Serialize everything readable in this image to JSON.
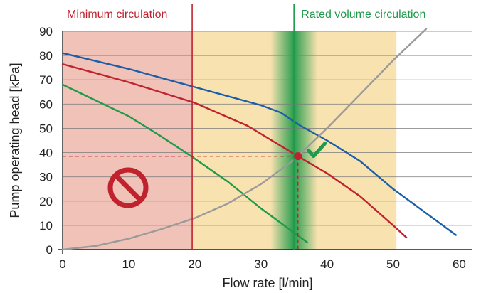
{
  "chart_data": {
    "type": "line",
    "xlabel": "Flow rate [l/min]",
    "ylabel": "Pump operating head [kPa]",
    "xlim": [
      0,
      62
    ],
    "ylim": [
      0,
      90
    ],
    "x_ticks": [
      0,
      10,
      20,
      30,
      40,
      50,
      60
    ],
    "y_ticks": [
      0,
      10,
      20,
      30,
      40,
      50,
      60,
      70,
      80,
      90
    ],
    "grid": "horizontal",
    "zones": {
      "minimum": {
        "label": "Minimum circulation",
        "x_start": 0,
        "x_end": 19.6,
        "color": "#f0c2b8"
      },
      "operating": {
        "x_start": 19.6,
        "x_end": 50.5,
        "color": "#f8e2b0"
      },
      "rated": {
        "label": "Rated volume circulation",
        "x": 35,
        "color": "#1e9a4a"
      }
    },
    "series": [
      {
        "color": "#1b5ea8",
        "points": [
          [
            0,
            81
          ],
          [
            10,
            74.5
          ],
          [
            20,
            67
          ],
          [
            30,
            59.5
          ],
          [
            33,
            56.5
          ],
          [
            36,
            51
          ],
          [
            40,
            45
          ],
          [
            45,
            36.5
          ],
          [
            50,
            25
          ],
          [
            55,
            15
          ],
          [
            59.5,
            6
          ]
        ]
      },
      {
        "color": "#c0232e",
        "points": [
          [
            0,
            76.5
          ],
          [
            10,
            69
          ],
          [
            20,
            60.5
          ],
          [
            28,
            51
          ],
          [
            35.6,
            38.5
          ],
          [
            40,
            31.5
          ],
          [
            45,
            22
          ],
          [
            50,
            10
          ],
          [
            52,
            5
          ]
        ]
      },
      {
        "color": "#1e9a4a",
        "points": [
          [
            0,
            68
          ],
          [
            10,
            55
          ],
          [
            15,
            46.5
          ],
          [
            20,
            37.5
          ],
          [
            25,
            28
          ],
          [
            30,
            17
          ],
          [
            34,
            9
          ],
          [
            37,
            3
          ]
        ]
      },
      {
        "color": "#9a9a9a",
        "points": [
          [
            0,
            0
          ],
          [
            5,
            1.5
          ],
          [
            10,
            4.5
          ],
          [
            15,
            8.5
          ],
          [
            20,
            13
          ],
          [
            25,
            19
          ],
          [
            30,
            27
          ],
          [
            35,
            37
          ],
          [
            40,
            50
          ],
          [
            45,
            64
          ],
          [
            50,
            78
          ],
          [
            55,
            91
          ]
        ]
      }
    ],
    "operating_point": {
      "x": 35.6,
      "y": 38.5,
      "color": "#c0232e"
    },
    "icons": {
      "check": "check-icon",
      "prohibited": "prohibited-icon"
    }
  }
}
